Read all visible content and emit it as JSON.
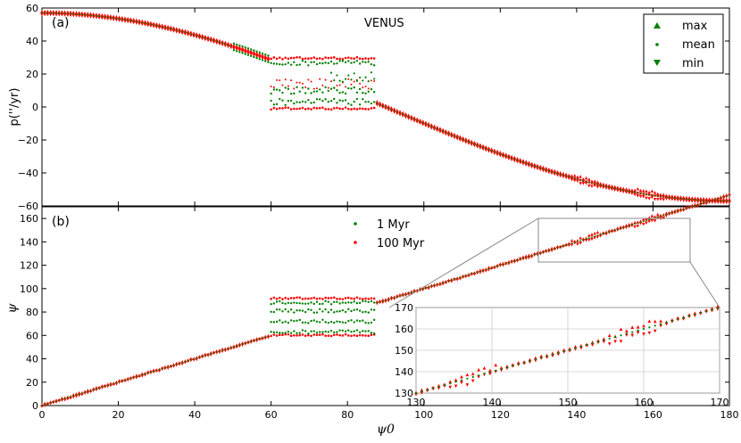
{
  "chart_data": [
    {
      "type": "scatter",
      "panel_label": "(a)",
      "title": "VENUS",
      "ylabel": "p(''/yr)",
      "xlim": [
        0,
        180
      ],
      "ylim": [
        -60,
        60
      ],
      "yticks": [
        -60,
        -40,
        -20,
        0,
        20,
        40,
        60
      ],
      "legend": [
        "max",
        "mean",
        "min"
      ],
      "legend_position": "top-right",
      "colors": {
        "1 Myr": "#008000",
        "100 Myr": "#ff0000"
      }
    },
    {
      "type": "scatter",
      "panel_label": "(b)",
      "xlabel": "ψ0",
      "ylabel": "ψ",
      "xlim": [
        0,
        180
      ],
      "ylim": [
        0,
        170
      ],
      "xticks": [
        0,
        20,
        40,
        60,
        80,
        100,
        120,
        140,
        160,
        180
      ],
      "yticks": [
        0,
        20,
        40,
        60,
        80,
        100,
        120,
        140,
        160
      ],
      "legend": [
        "1 Myr",
        "100 Myr"
      ],
      "legend_position": "upper-center",
      "inset": {
        "xlim": [
          130,
          170
        ],
        "ylim": [
          130,
          170
        ],
        "xticks": [
          130,
          140,
          150,
          160,
          170
        ],
        "yticks": [
          130,
          140,
          150,
          160,
          170
        ],
        "grid": true
      }
    }
  ]
}
